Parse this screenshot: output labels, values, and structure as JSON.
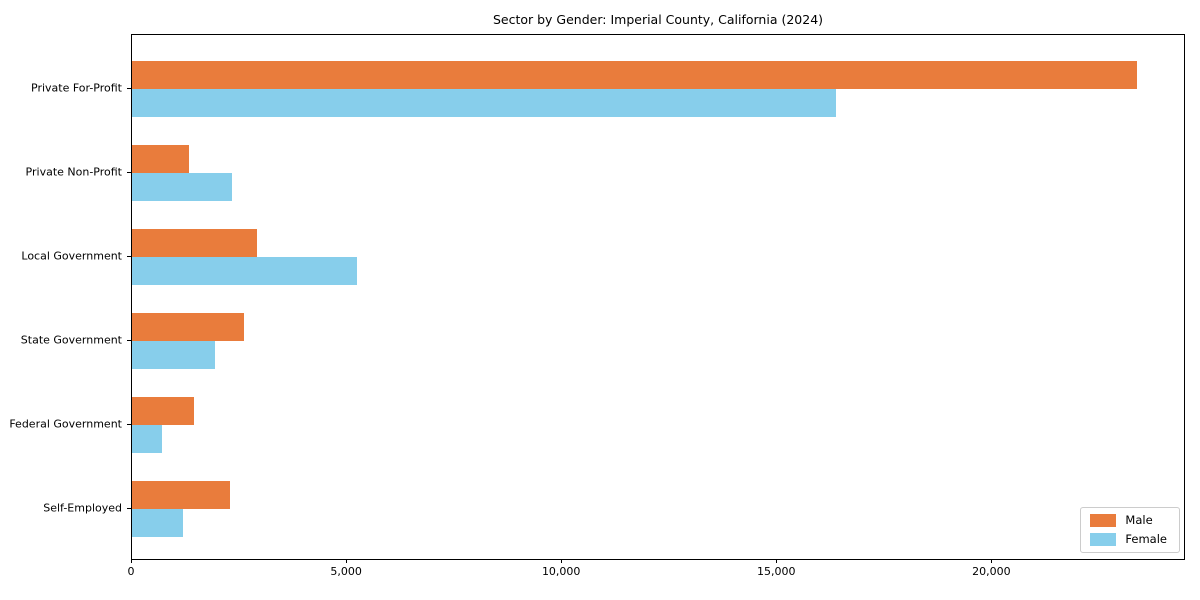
{
  "chart_data": {
    "type": "bar",
    "orientation": "horizontal",
    "title": "Sector by Gender: Imperial County, California (2024)",
    "categories": [
      "Private For-Profit",
      "Private Non-Profit",
      "Local Government",
      "State Government",
      "Federal Government",
      "Self-Employed"
    ],
    "series": [
      {
        "name": "Male",
        "color": "#E97C3C",
        "values": [
          23350,
          1330,
          2900,
          2600,
          1440,
          2280
        ]
      },
      {
        "name": "Female",
        "color": "#87CEEB",
        "values": [
          16370,
          2330,
          5230,
          1930,
          690,
          1190
        ]
      }
    ],
    "xlim": [
      0,
      24500
    ],
    "xticks": [
      0,
      5000,
      10000,
      15000,
      20000
    ],
    "xtick_labels": [
      "0",
      "5,000",
      "10,000",
      "15,000",
      "20,000"
    ],
    "xlabel": "",
    "ylabel": "",
    "grid": false,
    "legend_position": "lower right"
  }
}
